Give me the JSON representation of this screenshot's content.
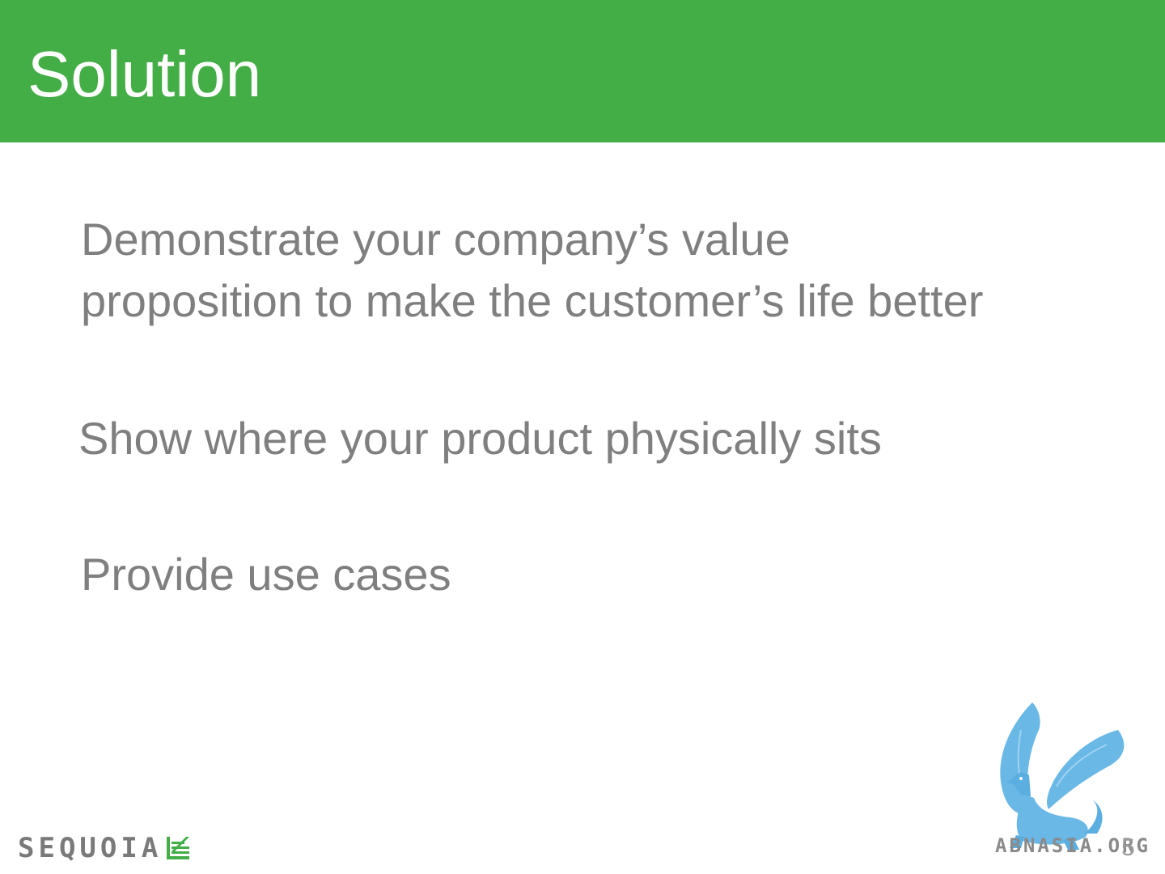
{
  "slide": {
    "title": "Solution",
    "bullets": [
      {
        "line1": "Demonstrate your company’s value",
        "line2": "proposition to make the customer’s life better"
      },
      {
        "line1": "Show where your product physically sits"
      },
      {
        "line1": "Provide use cases"
      }
    ],
    "page_number": "5"
  },
  "branding": {
    "logo_text": "SEQUOIA",
    "watermark_text": "ABNASIA.ORG",
    "watermark_icon": "griffin-icon",
    "logo_icon": "sequoia-tree-icon"
  },
  "colors": {
    "title_bar": "#43ad46",
    "title_text": "#ffffff",
    "body_text": "#7f7f7f",
    "logo_green": "#43ad46",
    "watermark_blue": "#6ab8e6"
  }
}
